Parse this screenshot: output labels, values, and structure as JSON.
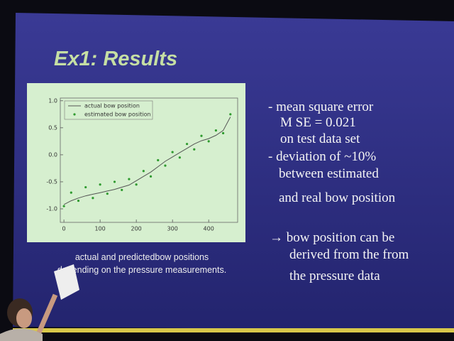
{
  "slide": {
    "title": "Ex1: Results",
    "lines": [
      "- mean square error",
      "M SE = 0.021",
      "on test data set",
      "- deviation of ~10%",
      "between estimated",
      "and real bow position",
      "→ bow position can be",
      "derived from the from",
      "the pressure data"
    ],
    "caption": [
      "actual and predictedbow positions",
      "depending on the pressure measurements."
    ]
  },
  "chart_data": {
    "type": "line",
    "x": [
      0,
      20,
      40,
      60,
      80,
      100,
      120,
      140,
      160,
      180,
      200,
      220,
      240,
      260,
      280,
      300,
      320,
      340,
      360,
      380,
      400,
      420,
      440,
      460
    ],
    "series": [
      {
        "name": "actual bow position",
        "color": "#555555",
        "mode": "line",
        "values": [
          -0.92,
          -0.85,
          -0.8,
          -0.76,
          -0.73,
          -0.7,
          -0.67,
          -0.64,
          -0.6,
          -0.56,
          -0.48,
          -0.4,
          -0.32,
          -0.22,
          -0.12,
          -0.04,
          0.04,
          0.12,
          0.2,
          0.26,
          0.3,
          0.36,
          0.45,
          0.7
        ]
      },
      {
        "name": "estimated bow position",
        "color": "#2e9a2e",
        "mode": "markers",
        "values": [
          -0.95,
          -0.7,
          -0.85,
          -0.6,
          -0.8,
          -0.55,
          -0.72,
          -0.5,
          -0.65,
          -0.45,
          -0.55,
          -0.3,
          -0.4,
          -0.1,
          -0.2,
          0.05,
          -0.05,
          0.2,
          0.1,
          0.35,
          0.25,
          0.45,
          0.4,
          0.75
        ]
      }
    ],
    "xlim": [
      -10,
      480
    ],
    "ylim": [
      -1.25,
      1.05
    ],
    "xticks": [
      0,
      100,
      200,
      300,
      400
    ],
    "yticks": [
      {
        "value": -1,
        "label": "-1.0"
      },
      {
        "value": -0.5,
        "label": "-0.5"
      },
      {
        "value": 0,
        "label": "0.0"
      },
      {
        "value": 0.5,
        "label": "0.5"
      },
      {
        "value": 1,
        "label": "1.0"
      }
    ],
    "legend": "upper-left"
  }
}
